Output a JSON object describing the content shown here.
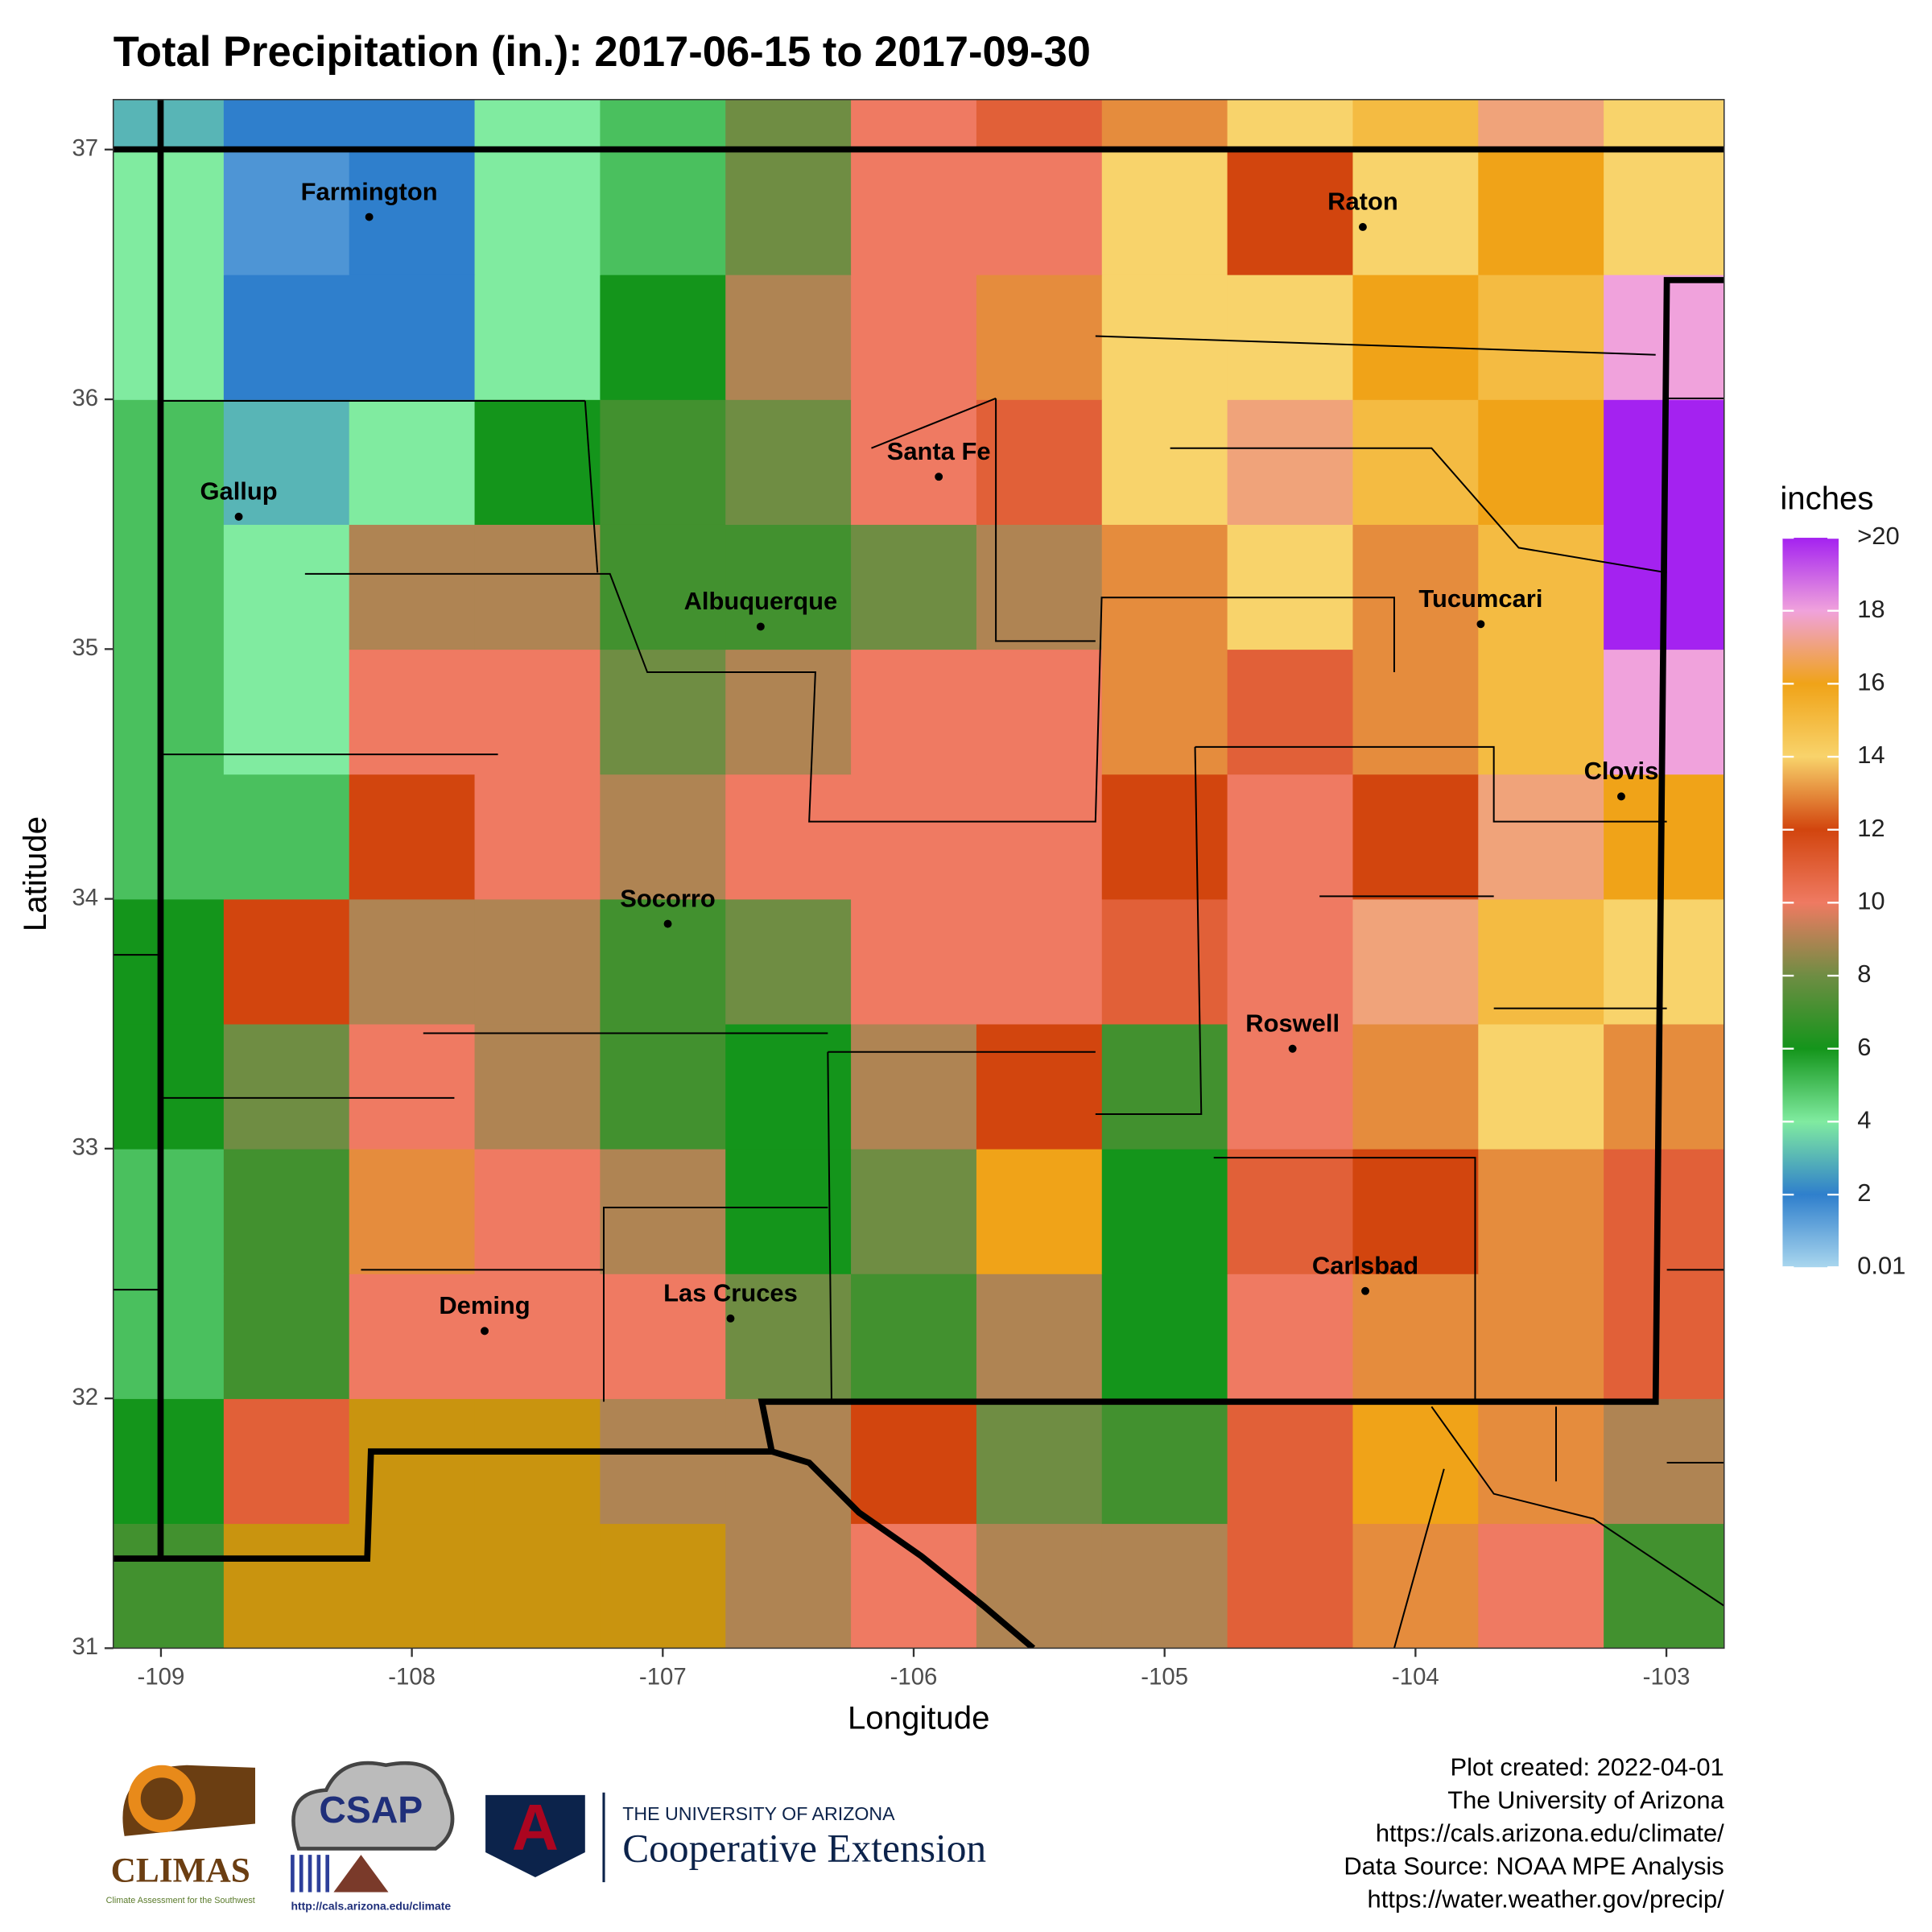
{
  "chart_data": {
    "type": "heatmap",
    "title": "Total Precipitation (in.): 2017-06-15 to 2017-09-30",
    "x_label": "Longitude",
    "y_label": "Latitude",
    "xlim": [
      -109.19,
      -102.77
    ],
    "ylim": [
      31,
      37.2
    ],
    "xticks": [
      -109,
      -108,
      -107,
      -106,
      -105,
      -104,
      -103
    ],
    "yticks": [
      31,
      32,
      33,
      34,
      35,
      36,
      37
    ],
    "lon_bins": [
      -109.25,
      -108.75,
      -108.25,
      -107.75,
      -107.25,
      -106.75,
      -106.25,
      -105.75,
      -105.25,
      -104.75,
      -104.25,
      -103.75,
      -103.25,
      -102.75
    ],
    "lat_bins": [
      31,
      31.5,
      32,
      32.5,
      33,
      33.5,
      34,
      34.5,
      35,
      35.5,
      36,
      36.5,
      37,
      37.5
    ],
    "values": [
      [
        7,
        null,
        null,
        null,
        null,
        9,
        10,
        9,
        9,
        11,
        13,
        10,
        7
      ],
      [
        6,
        11,
        null,
        null,
        9,
        9,
        12,
        8,
        7,
        11,
        16,
        13,
        9
      ],
      [
        5,
        7,
        10,
        10,
        10,
        8,
        7,
        9,
        6,
        10,
        13,
        13,
        11
      ],
      [
        5,
        7,
        13,
        10,
        9,
        6,
        8,
        16,
        6,
        11,
        12,
        13,
        11
      ],
      [
        6,
        8,
        10,
        9,
        7,
        6,
        9,
        12,
        7,
        10,
        13,
        14,
        13
      ],
      [
        6,
        12,
        9,
        9,
        7,
        8,
        10,
        10,
        11,
        10,
        17,
        15,
        14
      ],
      [
        5,
        5,
        12,
        10,
        9,
        10,
        10,
        10,
        12,
        10,
        12,
        17,
        16
      ],
      [
        5,
        4,
        10,
        10,
        8,
        9,
        10,
        10,
        13,
        11,
        13,
        15,
        18
      ],
      [
        5,
        4,
        9,
        9,
        7,
        7,
        8,
        9,
        13,
        14,
        13,
        15,
        20
      ],
      [
        5,
        3,
        4,
        6,
        7,
        8,
        10,
        11,
        14,
        17,
        15,
        16,
        20
      ],
      [
        4,
        2,
        2,
        4,
        6,
        9,
        10,
        13,
        14,
        14,
        16,
        15,
        18
      ],
      [
        4,
        1.5,
        2,
        4,
        5,
        8,
        10,
        10,
        14,
        12,
        14,
        16,
        14
      ],
      [
        3,
        2,
        2,
        4,
        5,
        8,
        10,
        11,
        13,
        14,
        15,
        17,
        14
      ]
    ],
    "na_color": "#c9940f",
    "legend_title": "inches",
    "colorscale": [
      {
        "value": 0.01,
        "color": "#a9d6ee"
      },
      {
        "value": 2,
        "color": "#2f7fcc"
      },
      {
        "value": 4,
        "color": "#80eba0"
      },
      {
        "value": 6,
        "color": "#14951b"
      },
      {
        "value": 8,
        "color": "#6f8d43"
      },
      {
        "value": 10,
        "color": "#ef7a62"
      },
      {
        "value": 12,
        "color": "#d2450e"
      },
      {
        "value": 14,
        "color": "#f8d36b"
      },
      {
        "value": 16,
        "color": "#f0a318"
      },
      {
        "value": 18,
        "color": "#f0a2dc"
      },
      {
        "value": 20,
        "color": "#a422f0"
      }
    ],
    "legend_ticks": [
      0.01,
      2,
      4,
      6,
      8,
      10,
      12,
      14,
      16,
      18,
      {
        "value": 20,
        "label": ">20"
      }
    ],
    "cities": [
      {
        "name": "Farmington",
        "lon": -108.17,
        "lat": 36.73
      },
      {
        "name": "Gallup",
        "lon": -108.69,
        "lat": 35.53
      },
      {
        "name": "Santa Fe",
        "lon": -105.9,
        "lat": 35.69
      },
      {
        "name": "Albuquerque",
        "lon": -106.61,
        "lat": 35.09
      },
      {
        "name": "Raton",
        "lon": -104.21,
        "lat": 36.69
      },
      {
        "name": "Tucumcari",
        "lon": -103.74,
        "lat": 35.1
      },
      {
        "name": "Clovis",
        "lon": -103.18,
        "lat": 34.41
      },
      {
        "name": "Socorro",
        "lon": -106.98,
        "lat": 33.9
      },
      {
        "name": "Roswell",
        "lon": -104.49,
        "lat": 33.4
      },
      {
        "name": "Deming",
        "lon": -107.71,
        "lat": 32.27
      },
      {
        "name": "Las Cruces",
        "lon": -106.73,
        "lat": 32.32
      },
      {
        "name": "Carlsbad",
        "lon": -104.2,
        "lat": 32.43
      }
    ]
  },
  "footer": {
    "credits": [
      "Plot created: 2022-04-01",
      "The University of Arizona",
      "https://cals.arizona.edu/climate/",
      "Data Source: NOAA MPE Analysis",
      "https://water.weather.gov/precip/"
    ],
    "climas": "CLIMAS",
    "climas_sub": "Climate Assessment for the Southwest",
    "csap": "CSAP",
    "csap_url": "http://cals.arizona.edu/climate",
    "ua": "THE UNIVERSITY OF ARIZONA",
    "coop": "Cooperative Extension"
  }
}
